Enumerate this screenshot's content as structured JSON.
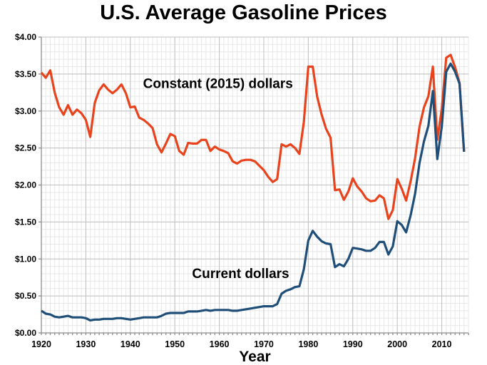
{
  "title": "U.S. Average Gasoline Prices",
  "chart_data": {
    "type": "line",
    "title": "U.S. Average Gasoline Prices",
    "xlabel": "Year",
    "ylabel": "",
    "xlim": [
      1920,
      2016
    ],
    "ylim": [
      0,
      4
    ],
    "grid": "major and minor, on",
    "x_minor_step": 1,
    "y_minor_step": 0.1,
    "legend_position": "inline text labels on plot",
    "x_ticks": [
      {
        "value": 1920,
        "label": "1920"
      },
      {
        "value": 1930,
        "label": "1930"
      },
      {
        "value": 1940,
        "label": "1940"
      },
      {
        "value": 1950,
        "label": "1950"
      },
      {
        "value": 1960,
        "label": "1960"
      },
      {
        "value": 1970,
        "label": "1970"
      },
      {
        "value": 1980,
        "label": "1980"
      },
      {
        "value": 1990,
        "label": "1990"
      },
      {
        "value": 2000,
        "label": "2000"
      },
      {
        "value": 2010,
        "label": "2010"
      }
    ],
    "y_ticks": [
      {
        "value": 0.0,
        "label": "$0.00"
      },
      {
        "value": 0.5,
        "label": "$0.50"
      },
      {
        "value": 1.0,
        "label": "$1.00"
      },
      {
        "value": 1.5,
        "label": "$1.50"
      },
      {
        "value": 2.0,
        "label": "$2.00"
      },
      {
        "value": 2.5,
        "label": "$2.50"
      },
      {
        "value": 3.0,
        "label": "$3.00"
      },
      {
        "value": 3.5,
        "label": "$3.50"
      },
      {
        "value": 4.0,
        "label": "$4.00"
      }
    ],
    "x": [
      1920,
      1921,
      1922,
      1923,
      1924,
      1925,
      1926,
      1927,
      1928,
      1929,
      1930,
      1931,
      1932,
      1933,
      1934,
      1935,
      1936,
      1937,
      1938,
      1939,
      1940,
      1941,
      1942,
      1943,
      1944,
      1945,
      1946,
      1947,
      1948,
      1949,
      1950,
      1951,
      1952,
      1953,
      1954,
      1955,
      1956,
      1957,
      1958,
      1959,
      1960,
      1961,
      1962,
      1963,
      1964,
      1965,
      1966,
      1967,
      1968,
      1969,
      1970,
      1971,
      1972,
      1973,
      1974,
      1975,
      1976,
      1977,
      1978,
      1979,
      1980,
      1981,
      1982,
      1983,
      1984,
      1985,
      1986,
      1987,
      1988,
      1989,
      1990,
      1991,
      1992,
      1993,
      1994,
      1995,
      1996,
      1997,
      1998,
      1999,
      2000,
      2001,
      2002,
      2003,
      2004,
      2005,
      2006,
      2007,
      2008,
      2009,
      2010,
      2011,
      2012,
      2013,
      2014,
      2015
    ],
    "series": [
      {
        "name": "Constant (2015) dollars",
        "color": "#e8431c",
        "values": [
          3.52,
          3.45,
          3.55,
          3.25,
          3.05,
          2.95,
          3.08,
          2.95,
          3.02,
          2.97,
          2.88,
          2.65,
          3.11,
          3.28,
          3.36,
          3.29,
          3.24,
          3.29,
          3.36,
          3.24,
          3.05,
          3.06,
          2.91,
          2.88,
          2.83,
          2.77,
          2.55,
          2.44,
          2.56,
          2.69,
          2.66,
          2.46,
          2.41,
          2.57,
          2.56,
          2.56,
          2.61,
          2.61,
          2.46,
          2.52,
          2.48,
          2.46,
          2.43,
          2.32,
          2.29,
          2.33,
          2.34,
          2.34,
          2.32,
          2.26,
          2.2,
          2.11,
          2.04,
          2.08,
          2.55,
          2.52,
          2.55,
          2.5,
          2.42,
          2.85,
          3.6,
          3.6,
          3.19,
          2.95,
          2.76,
          2.64,
          1.93,
          1.94,
          1.8,
          1.91,
          2.09,
          1.98,
          1.91,
          1.82,
          1.78,
          1.79,
          1.86,
          1.82,
          1.54,
          1.66,
          2.08,
          1.95,
          1.79,
          2.05,
          2.36,
          2.79,
          3.05,
          3.2,
          3.6,
          2.61,
          3.03,
          3.72,
          3.76,
          3.59,
          3.38,
          2.45
        ]
      },
      {
        "name": "Current dollars",
        "color": "#1f4e79",
        "values": [
          0.3,
          0.26,
          0.25,
          0.22,
          0.21,
          0.22,
          0.23,
          0.21,
          0.21,
          0.21,
          0.2,
          0.17,
          0.18,
          0.18,
          0.19,
          0.19,
          0.19,
          0.2,
          0.2,
          0.19,
          0.18,
          0.19,
          0.2,
          0.21,
          0.21,
          0.21,
          0.21,
          0.23,
          0.26,
          0.27,
          0.27,
          0.27,
          0.27,
          0.29,
          0.29,
          0.29,
          0.3,
          0.31,
          0.3,
          0.31,
          0.31,
          0.31,
          0.31,
          0.3,
          0.3,
          0.31,
          0.32,
          0.33,
          0.34,
          0.35,
          0.36,
          0.36,
          0.36,
          0.39,
          0.53,
          0.57,
          0.59,
          0.62,
          0.63,
          0.86,
          1.25,
          1.38,
          1.3,
          1.24,
          1.21,
          1.2,
          0.89,
          0.93,
          0.9,
          1.0,
          1.15,
          1.14,
          1.13,
          1.11,
          1.11,
          1.15,
          1.23,
          1.23,
          1.06,
          1.17,
          1.51,
          1.46,
          1.36,
          1.59,
          1.88,
          2.3,
          2.59,
          2.8,
          3.27,
          2.35,
          2.79,
          3.53,
          3.64,
          3.53,
          3.37,
          2.45
        ]
      }
    ],
    "annotations": [
      {
        "text": "Constant (2015) dollars",
        "x": 1959.7,
        "y": 3.37
      },
      {
        "text": "Current dollars",
        "x": 1964.8,
        "y": 0.8
      }
    ]
  },
  "colors": {
    "background": "#ffffff",
    "axis": "#8c8c8c",
    "major_grid": "#c0c0c0",
    "minor_grid": "#e7e7e7",
    "text": "#000000",
    "constant_dollars_line": "#e8431c",
    "current_dollars_line": "#1f4e79"
  }
}
